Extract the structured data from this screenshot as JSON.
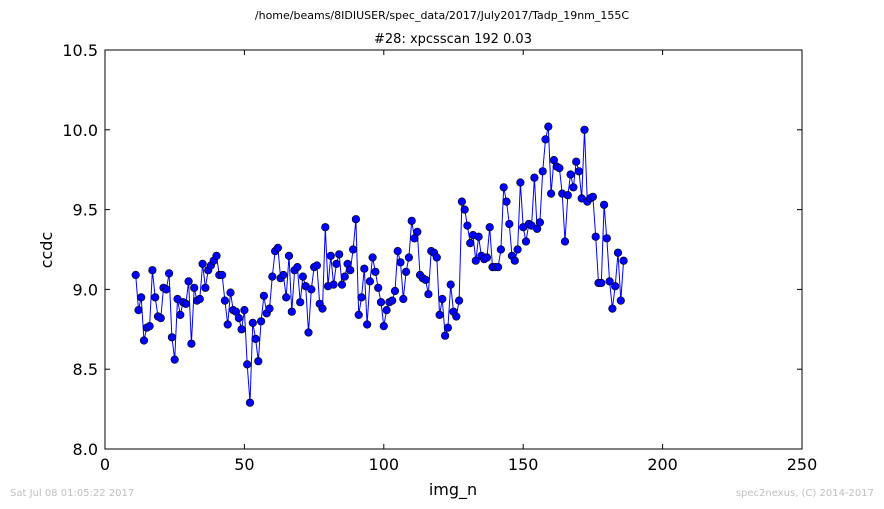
{
  "suptitle": "/home/beams/8IDIUSER/spec_data/2017/July2017/Tadp_19nm_155C",
  "footer": {
    "left": "Sat Jul 08 01:05:22 2017",
    "right": "spec2nexus, (C) 2014-2017"
  },
  "chart_data": {
    "type": "line",
    "title": "#28: xpcsscan 192 0.03",
    "xlabel": "img_n",
    "ylabel": "ccdc",
    "xlim": [
      0,
      250
    ],
    "ylim": [
      8.0,
      10.5
    ],
    "xticks": [
      0,
      50,
      100,
      150,
      200,
      250
    ],
    "yticks": [
      8.0,
      8.5,
      9.0,
      9.5,
      10.0,
      10.5
    ],
    "xtick_labels": [
      "0",
      "50",
      "100",
      "150",
      "200",
      "250"
    ],
    "ytick_labels": [
      "8.0",
      "8.5",
      "9.0",
      "9.5",
      "10.0",
      "10.5"
    ],
    "grid": false,
    "color": "#0000ff",
    "marker": "circle",
    "x_start": 11,
    "x_step": 1,
    "values": [
      9.09,
      8.87,
      8.95,
      8.68,
      8.76,
      8.77,
      9.12,
      8.95,
      8.83,
      8.82,
      9.01,
      9.0,
      9.1,
      8.7,
      8.56,
      8.94,
      8.84,
      8.92,
      8.91,
      9.05,
      8.66,
      9.01,
      8.93,
      8.94,
      9.16,
      9.01,
      9.12,
      9.15,
      9.18,
      9.21,
      9.09,
      9.09,
      8.93,
      8.78,
      8.98,
      8.87,
      8.86,
      8.82,
      8.75,
      8.87,
      8.53,
      8.29,
      8.79,
      8.69,
      8.55,
      8.8,
      8.96,
      8.85,
      8.88,
      9.08,
      9.24,
      9.26,
      9.07,
      9.09,
      8.95,
      9.21,
      8.86,
      9.12,
      9.14,
      8.92,
      9.08,
      9.02,
      8.73,
      9.0,
      9.14,
      9.15,
      8.91,
      8.88,
      9.39,
      9.02,
      9.21,
      9.03,
      9.16,
      9.22,
      9.03,
      9.08,
      9.16,
      9.12,
      9.25,
      9.44,
      8.84,
      8.95,
      9.13,
      8.78,
      9.05,
      9.2,
      9.11,
      9.01,
      8.92,
      8.77,
      8.87,
      8.92,
      8.93,
      8.99,
      9.24,
      9.17,
      8.94,
      9.11,
      9.2,
      9.43,
      9.32,
      9.36,
      9.09,
      9.07,
      9.06,
      8.97,
      9.24,
      9.23,
      9.2,
      8.84,
      8.94,
      8.71,
      8.76,
      9.03,
      8.86,
      8.83,
      8.93,
      9.55,
      9.5,
      9.4,
      9.29,
      9.34,
      9.18,
      9.33,
      9.21,
      9.19,
      9.2,
      9.39,
      9.14,
      9.14,
      9.14,
      9.25,
      9.64,
      9.55,
      9.41,
      9.21,
      9.18,
      9.25,
      9.67,
      9.39,
      9.3,
      9.41,
      9.4,
      9.7,
      9.38,
      9.42,
      9.74,
      9.94,
      10.02,
      9.6,
      9.81,
      9.77,
      9.76,
      9.6,
      9.3,
      9.59,
      9.72,
      9.64,
      9.8,
      9.74,
      9.57,
      10.0,
      9.55,
      9.57,
      9.58,
      9.33,
      9.04,
      9.04,
      9.53,
      9.32,
      9.05,
      8.88,
      9.02,
      9.23,
      8.93,
      9.18
    ]
  }
}
